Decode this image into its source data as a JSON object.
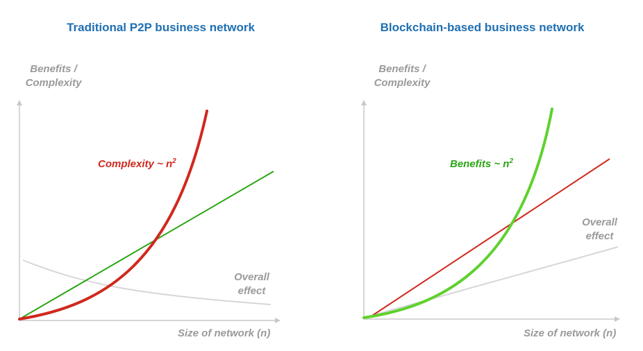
{
  "chart_data": [
    {
      "type": "line",
      "title": "Traditional P2P business network",
      "ylabel_line1": "Benefits /",
      "ylabel_line2": "Complexity",
      "xlabel": "Size of network (n)",
      "annotations": {
        "curve": "Complexity ~ n",
        "curve_sup": "2",
        "overall_line1": "Overall",
        "overall_line2": "effect"
      },
      "series": [
        {
          "kind": "quadratic",
          "color": "#d0281e"
        },
        {
          "kind": "linear",
          "color": "#2aa514"
        },
        {
          "kind": "decreasing",
          "color": "#d3d3d3"
        }
      ]
    },
    {
      "type": "line",
      "title": "Blockchain-based business network",
      "ylabel_line1": "Benefits /",
      "ylabel_line2": "Complexity",
      "xlabel": "Size of network (n)",
      "annotations": {
        "curve": "Benefits ~ n",
        "curve_sup": "2",
        "overall_line1": "Overall",
        "overall_line2": "effect"
      },
      "series": [
        {
          "kind": "quadratic",
          "color": "#5fd12e"
        },
        {
          "kind": "linear",
          "color": "#d0281e"
        },
        {
          "kind": "increasing",
          "color": "#d3d3d3"
        }
      ]
    }
  ]
}
